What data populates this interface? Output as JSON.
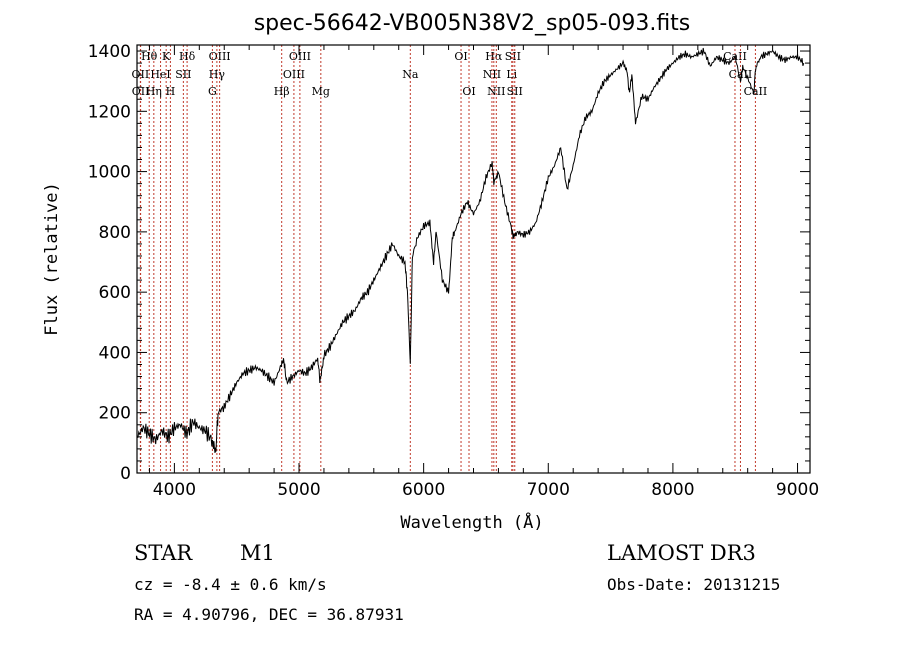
{
  "chart_data": {
    "type": "line",
    "title": "spec-56642-VB005N38V2_sp05-093.fits",
    "xlabel": "Wavelength (Å)",
    "ylabel": "Flux (relative)",
    "xlim": [
      3700,
      9100
    ],
    "ylim": [
      0,
      1420
    ],
    "xticks": [
      4000,
      5000,
      6000,
      7000,
      8000,
      9000
    ],
    "yticks": [
      0,
      200,
      400,
      600,
      800,
      1000,
      1200,
      1400
    ],
    "grid": false,
    "series": [
      {
        "name": "spectrum",
        "color": "#000000",
        "x": [
          3700,
          3750,
          3800,
          3850,
          3900,
          3950,
          4000,
          4050,
          4100,
          4150,
          4200,
          4250,
          4300,
          4330,
          4350,
          4400,
          4450,
          4500,
          4550,
          4600,
          4650,
          4700,
          4750,
          4800,
          4850,
          4880,
          4900,
          4950,
          5000,
          5050,
          5100,
          5150,
          5170,
          5200,
          5250,
          5300,
          5350,
          5400,
          5450,
          5500,
          5550,
          5600,
          5650,
          5700,
          5750,
          5800,
          5850,
          5870,
          5893,
          5910,
          5950,
          6000,
          6050,
          6080,
          6100,
          6150,
          6200,
          6230,
          6250,
          6300,
          6350,
          6400,
          6450,
          6500,
          6550,
          6563,
          6600,
          6650,
          6700,
          6720,
          6750,
          6800,
          6850,
          6900,
          6950,
          7000,
          7050,
          7100,
          7150,
          7200,
          7250,
          7300,
          7350,
          7400,
          7450,
          7500,
          7550,
          7600,
          7630,
          7650,
          7670,
          7700,
          7750,
          7800,
          7850,
          7900,
          7950,
          8000,
          8050,
          8100,
          8150,
          8200,
          8250,
          8300,
          8350,
          8400,
          8450,
          8500,
          8542,
          8560,
          8600,
          8650,
          8662,
          8700,
          8750,
          8800,
          8850,
          8900,
          8950,
          9000,
          9050
        ],
        "values": [
          120,
          150,
          130,
          110,
          140,
          120,
          150,
          160,
          130,
          170,
          150,
          140,
          110,
          60,
          200,
          220,
          260,
          300,
          330,
          340,
          350,
          340,
          320,
          300,
          350,
          370,
          300,
          320,
          340,
          330,
          350,
          380,
          300,
          390,
          420,
          460,
          500,
          520,
          540,
          580,
          600,
          640,
          680,
          720,
          760,
          720,
          700,
          600,
          360,
          720,
          780,
          820,
          830,
          700,
          800,
          640,
          600,
          780,
          800,
          860,
          900,
          860,
          900,
          980,
          1030,
          960,
          1000,
          900,
          820,
          780,
          800,
          790,
          800,
          830,
          900,
          980,
          1020,
          1080,
          940,
          1020,
          1120,
          1180,
          1200,
          1260,
          1300,
          1320,
          1340,
          1360,
          1340,
          1260,
          1320,
          1160,
          1250,
          1240,
          1280,
          1310,
          1340,
          1360,
          1380,
          1390,
          1380,
          1390,
          1400,
          1350,
          1380,
          1370,
          1360,
          1380,
          1300,
          1350,
          1310,
          1260,
          1340,
          1380,
          1390,
          1400,
          1380,
          1370,
          1380,
          1380,
          1360
        ]
      }
    ],
    "lines": [
      {
        "label": "Hθ",
        "x": 3798,
        "row": 0
      },
      {
        "label": "OII",
        "x": 3727,
        "row": 1
      },
      {
        "label": "OII",
        "x": 3729,
        "row": 2
      },
      {
        "label": "HeI",
        "x": 3889,
        "row": 1
      },
      {
        "label": "Hη",
        "x": 3835,
        "row": 2
      },
      {
        "label": "K",
        "x": 3934,
        "row": 0
      },
      {
        "label": "H",
        "x": 3968,
        "row": 2
      },
      {
        "label": "Hδ",
        "x": 4102,
        "row": 0
      },
      {
        "label": "SII",
        "x": 4072,
        "row": 1
      },
      {
        "label": "OIII",
        "x": 4363,
        "row": 0
      },
      {
        "label": "Hγ",
        "x": 4341,
        "row": 1
      },
      {
        "label": "G",
        "x": 4305,
        "row": 2
      },
      {
        "label": "OIII",
        "x": 5007,
        "row": 0
      },
      {
        "label": "OIII",
        "x": 4959,
        "row": 1
      },
      {
        "label": "Hβ",
        "x": 4861,
        "row": 2
      },
      {
        "label": "Mg",
        "x": 5175,
        "row": 2
      },
      {
        "label": "Na",
        "x": 5893,
        "row": 1
      },
      {
        "label": "OI",
        "x": 6300,
        "row": 0
      },
      {
        "label": "OI",
        "x": 6364,
        "row": 2
      },
      {
        "label": "Hα",
        "x": 6563,
        "row": 0
      },
      {
        "label": "NII",
        "x": 6548,
        "row": 1
      },
      {
        "label": "NII",
        "x": 6583,
        "row": 2
      },
      {
        "label": "SII",
        "x": 6716,
        "row": 0
      },
      {
        "label": "Li",
        "x": 6707,
        "row": 1
      },
      {
        "label": "SII",
        "x": 6731,
        "row": 2
      },
      {
        "label": "CaII",
        "x": 8498,
        "row": 0
      },
      {
        "label": "CaII",
        "x": 8542,
        "row": 1
      },
      {
        "label": "CaII",
        "x": 8662,
        "row": 2
      }
    ]
  },
  "info": {
    "class": "STAR",
    "subclass": "M1",
    "cz": "cz = -8.4 ± 0.6 km/s",
    "radec": "RA =   4.90796, DEC =  36.87931",
    "survey": "LAMOST DR3",
    "obsdate": "Obs-Date: 20131215"
  }
}
